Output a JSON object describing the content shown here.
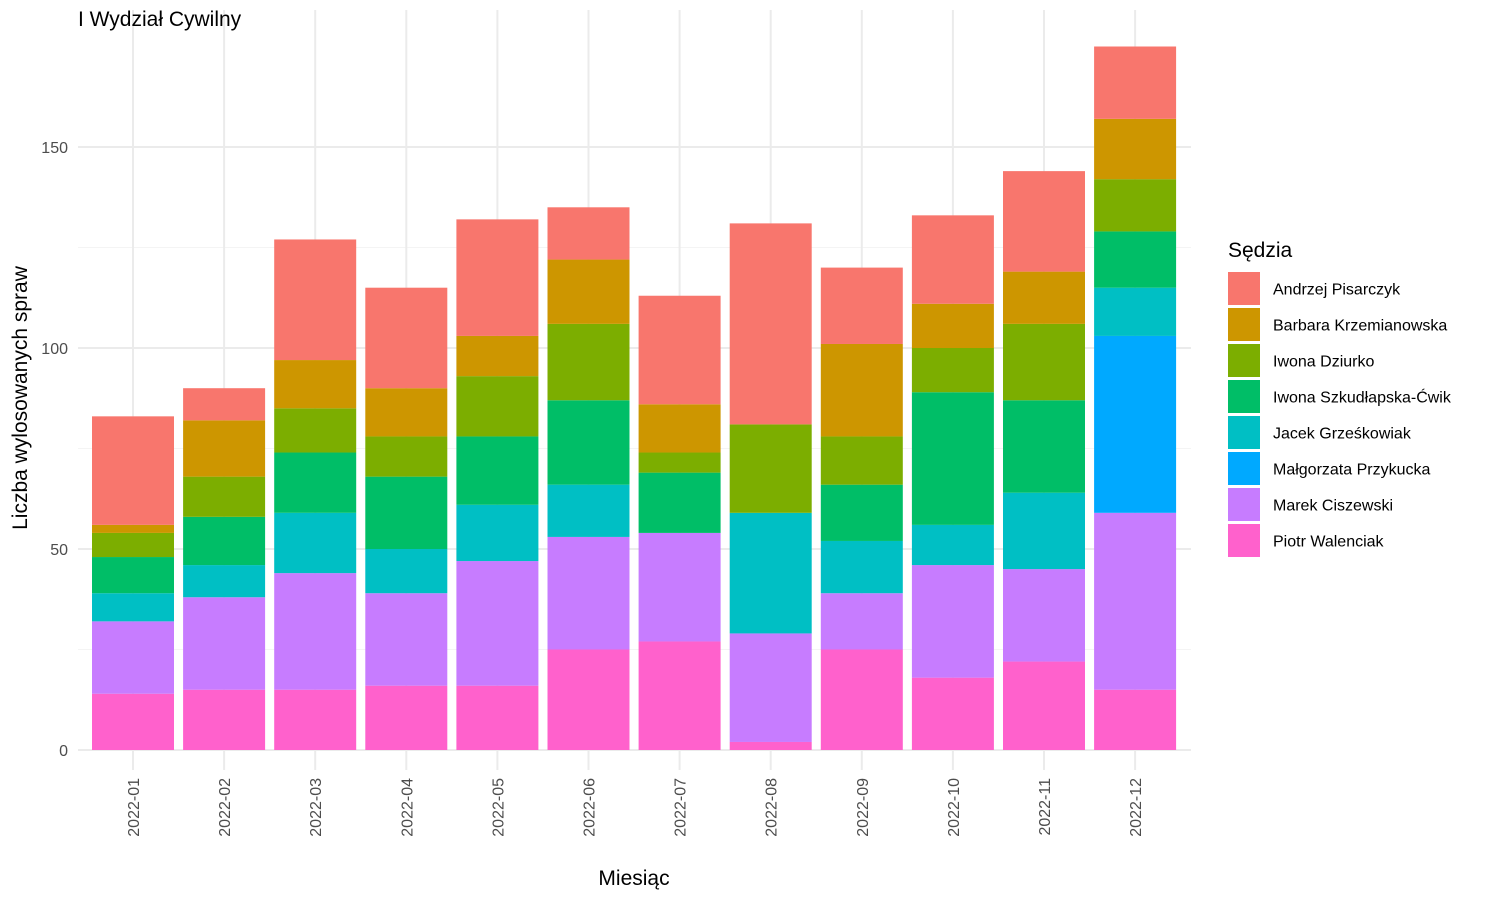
{
  "chart_data": {
    "type": "bar",
    "stacked": true,
    "title": "I Wydział Cywilny",
    "xlabel": "Miesiąc",
    "ylabel": "Liczba wylosowanych spraw",
    "ylim": [
      0,
      175
    ],
    "yticks": [
      0,
      50,
      100,
      150
    ],
    "grid": true,
    "legend": {
      "title": "Sędzia",
      "position": "right"
    },
    "categories": [
      "2022-01",
      "2022-02",
      "2022-03",
      "2022-04",
      "2022-05",
      "2022-06",
      "2022-07",
      "2022-08",
      "2022-09",
      "2022-10",
      "2022-11",
      "2022-12"
    ],
    "series": [
      {
        "name": "Andrzej Pisarczyk",
        "color": "#F8766D",
        "values": [
          27,
          8,
          30,
          25,
          29,
          13,
          27,
          50,
          19,
          22,
          25,
          18
        ]
      },
      {
        "name": "Barbara Krzemianowska",
        "color": "#CD9600",
        "values": [
          2,
          14,
          12,
          12,
          10,
          16,
          12,
          0,
          23,
          11,
          13,
          15
        ]
      },
      {
        "name": "Iwona Dziurko",
        "color": "#7CAE00",
        "values": [
          6,
          10,
          11,
          10,
          15,
          19,
          5,
          22,
          12,
          11,
          19,
          13
        ]
      },
      {
        "name": "Iwona Szkudłapska-Ćwik",
        "color": "#00BE67",
        "values": [
          9,
          12,
          15,
          18,
          17,
          21,
          15,
          0,
          14,
          33,
          23,
          14
        ]
      },
      {
        "name": "Jacek Grześkowiak",
        "color": "#00BFC4",
        "values": [
          7,
          8,
          15,
          11,
          14,
          13,
          0,
          30,
          13,
          10,
          19,
          12
        ]
      },
      {
        "name": "Małgorzata Przykucka",
        "color": "#00A9FF",
        "values": [
          0,
          0,
          0,
          0,
          0,
          0,
          0,
          0,
          0,
          0,
          0,
          44
        ]
      },
      {
        "name": "Marek Ciszewski",
        "color": "#C77CFF",
        "values": [
          18,
          23,
          29,
          23,
          31,
          28,
          27,
          27,
          14,
          28,
          23,
          44
        ]
      },
      {
        "name": "Piotr Walenciak",
        "color": "#FF61CC",
        "values": [
          14,
          15,
          15,
          16,
          16,
          25,
          27,
          2,
          25,
          18,
          22,
          15
        ]
      }
    ]
  }
}
